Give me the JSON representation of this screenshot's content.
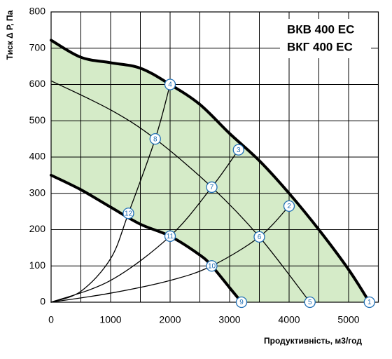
{
  "chart_data": {
    "type": "line",
    "title_lines": [
      "ВКВ 400 ЕС",
      "ВКГ 400 ЕС"
    ],
    "x_label": "Продуктивність, м3/год",
    "y_label": "Тиск Δ Р, Па",
    "xlim": [
      0,
      5500
    ],
    "ylim": [
      0,
      800
    ],
    "xticks": [
      0,
      1000,
      2000,
      3000,
      4000,
      5000
    ],
    "x_minor_grid": [
      500,
      1500,
      2500,
      3500,
      4500,
      5500
    ],
    "yticks": [
      0,
      100,
      200,
      300,
      400,
      500,
      600,
      700,
      800
    ],
    "grid": true,
    "area_color": "#d5ebc8",
    "marker_color": "#1f6fb5",
    "curves": [
      {
        "style": "thick",
        "x": [
          0,
          500,
          1000,
          1500,
          2000,
          2500,
          3000,
          3500,
          4000,
          4500,
          5000,
          5350
        ],
        "y": [
          722,
          675,
          660,
          645,
          600,
          545,
          465,
          390,
          300,
          200,
          90,
          0
        ]
      },
      {
        "style": "thick",
        "x": [
          0,
          500,
          1000,
          1500,
          2000,
          2500,
          2700,
          3000,
          3200
        ],
        "y": [
          350,
          310,
          262,
          215,
          182,
          130,
          100,
          40,
          0
        ]
      },
      {
        "style": "thin",
        "x": [
          0,
          1000,
          1750,
          2700,
          3500,
          4350
        ],
        "y": [
          610,
          530,
          450,
          317,
          180,
          0
        ]
      },
      {
        "style": "thin",
        "x": [
          0,
          500,
          1000,
          1300,
          1750,
          2000
        ],
        "y": [
          0,
          30,
          120,
          245,
          450,
          600
        ]
      },
      {
        "style": "thin",
        "x": [
          0,
          1000,
          2000,
          2700,
          3150
        ],
        "y": [
          0,
          60,
          182,
          317,
          420
        ]
      },
      {
        "style": "thin",
        "x": [
          0,
          1000,
          2000,
          2700,
          3500,
          4000
        ],
        "y": [
          0,
          25,
          60,
          100,
          180,
          265
        ]
      }
    ],
    "markers": [
      {
        "label": "1",
        "x": 5350,
        "y": 0
      },
      {
        "label": "2",
        "x": 4000,
        "y": 265
      },
      {
        "label": "3",
        "x": 3150,
        "y": 420
      },
      {
        "label": "4",
        "x": 2000,
        "y": 600
      },
      {
        "label": "5",
        "x": 4350,
        "y": 0
      },
      {
        "label": "6",
        "x": 3500,
        "y": 180
      },
      {
        "label": "7",
        "x": 2700,
        "y": 317
      },
      {
        "label": "8",
        "x": 1750,
        "y": 450
      },
      {
        "label": "9",
        "x": 3200,
        "y": 0
      },
      {
        "label": "10",
        "x": 2700,
        "y": 100
      },
      {
        "label": "11",
        "x": 2000,
        "y": 182
      },
      {
        "label": "12",
        "x": 1300,
        "y": 245
      }
    ]
  }
}
